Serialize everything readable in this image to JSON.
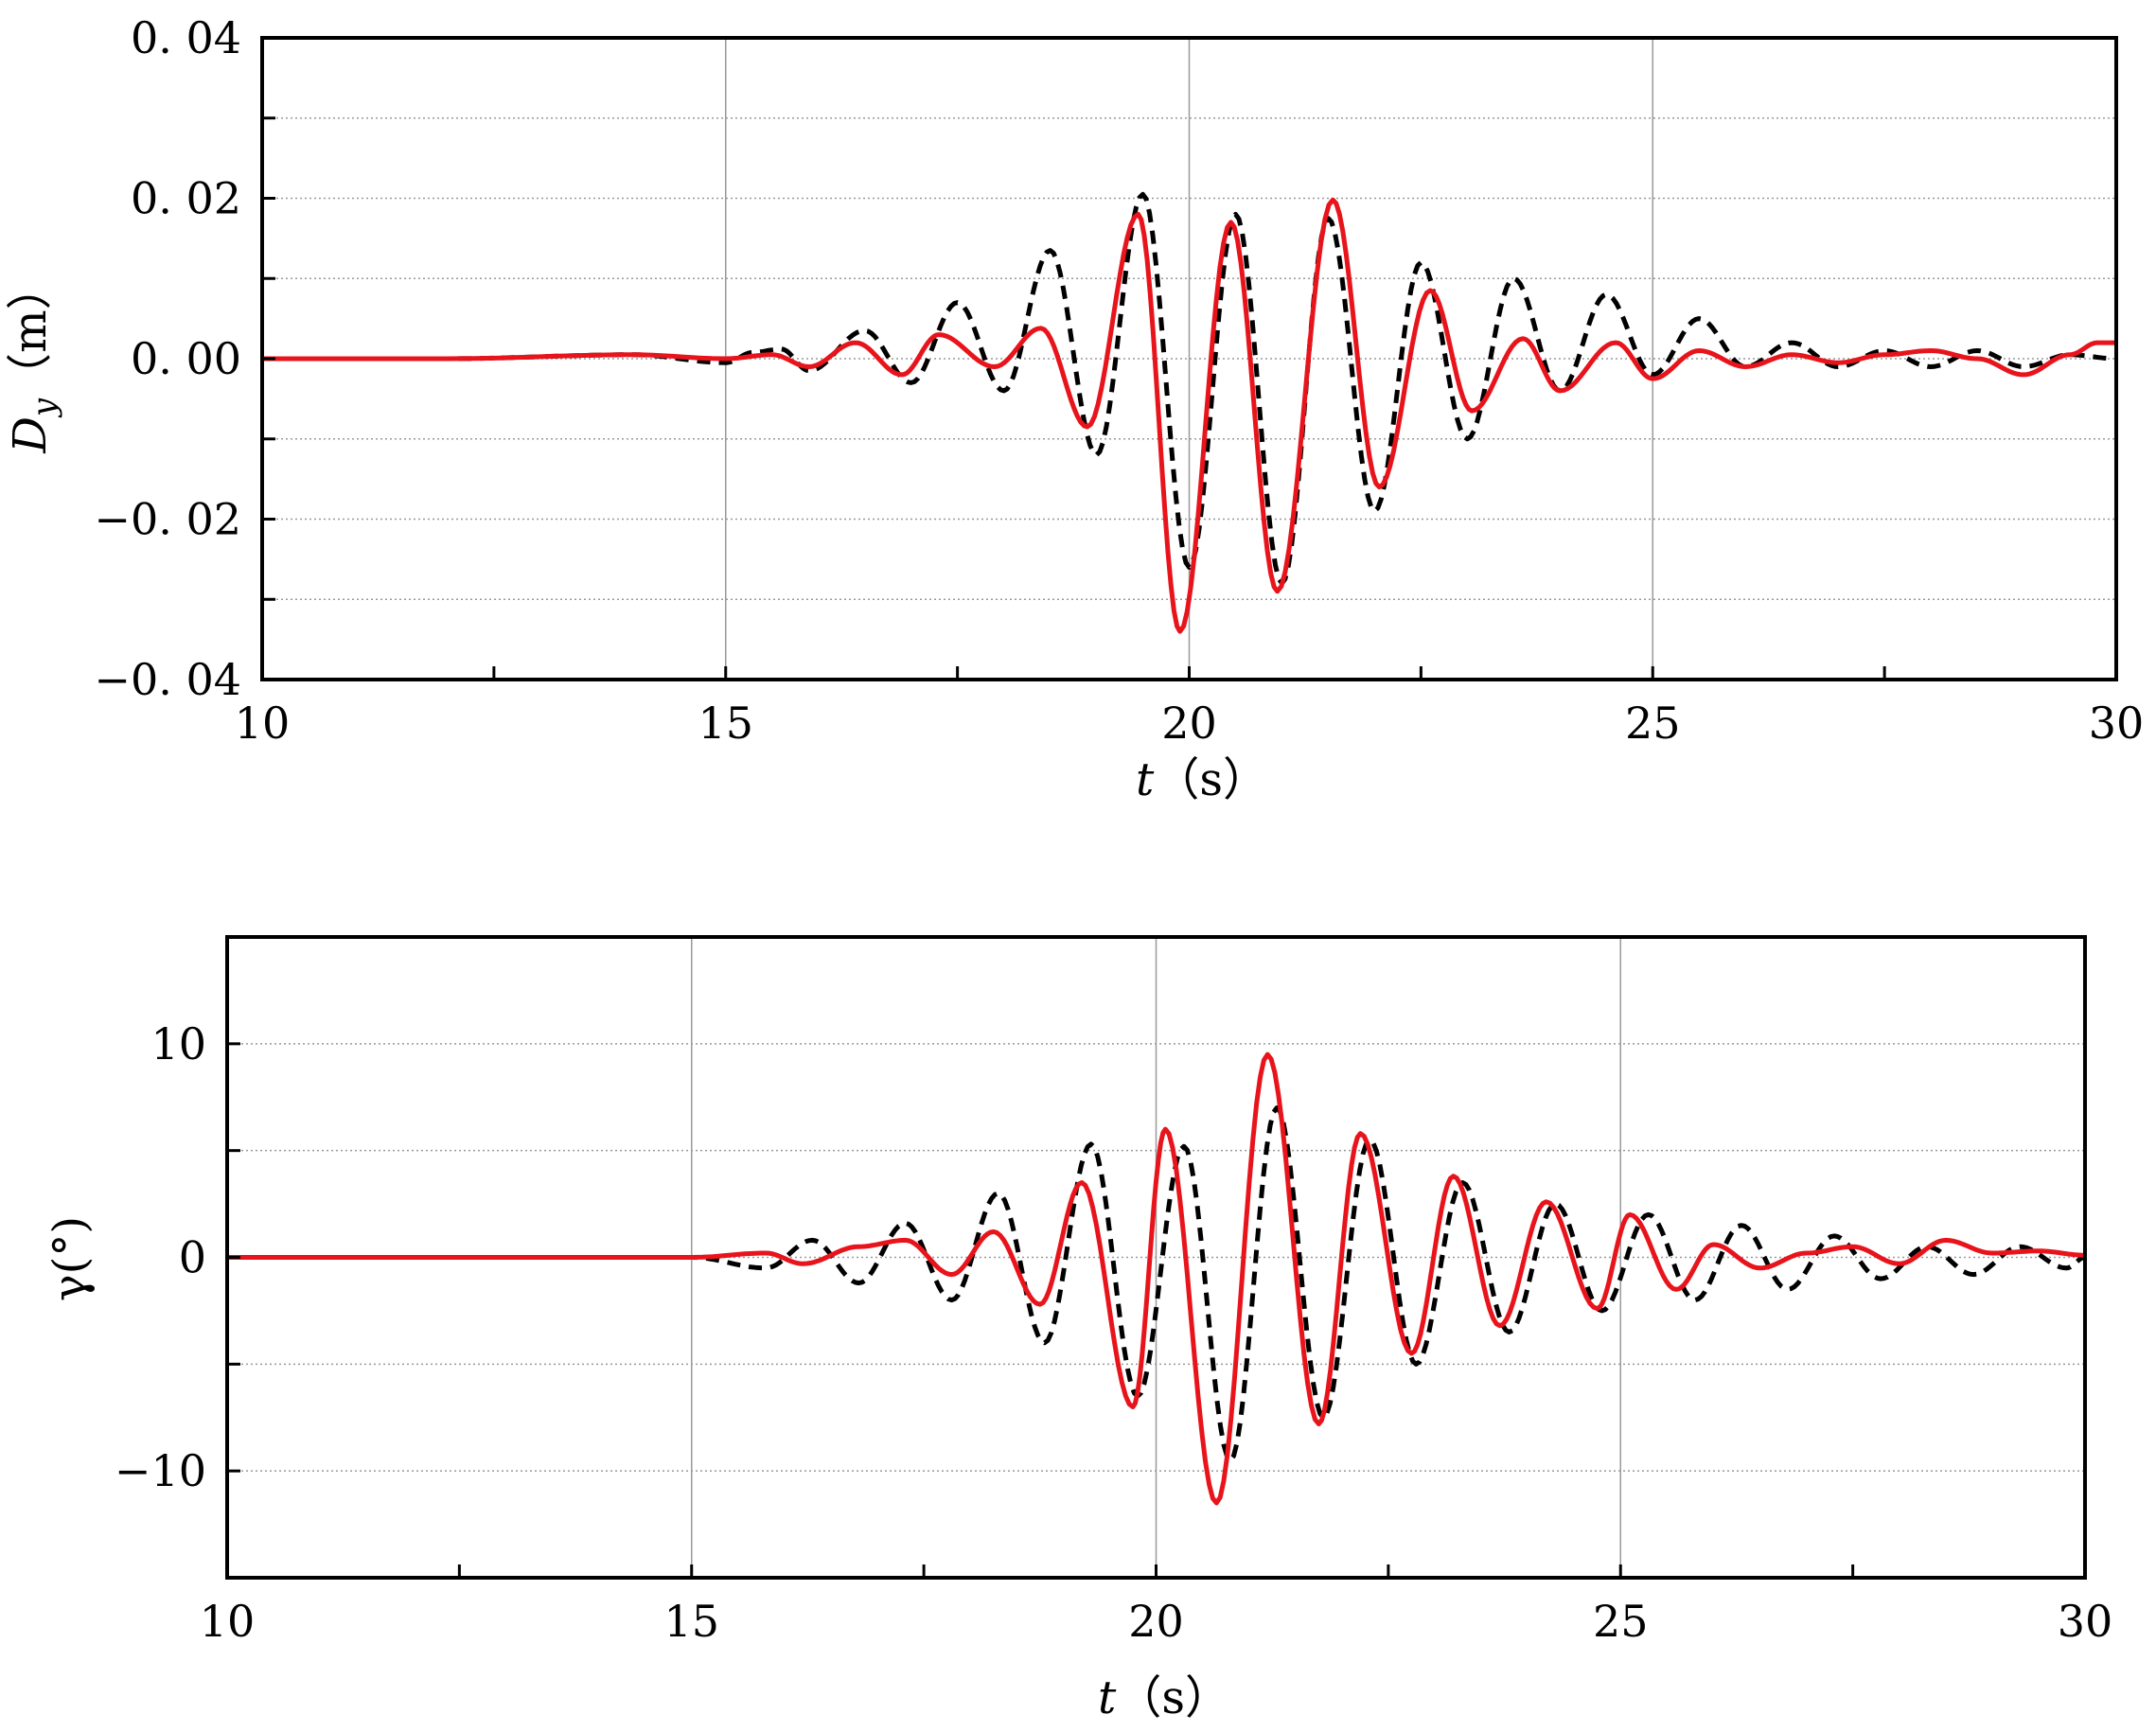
{
  "chart_data": [
    {
      "type": "line",
      "title": "",
      "xlabel": {
        "var": "t",
        "unit": "（s）"
      },
      "ylabel": {
        "var": "D",
        "sub": "y",
        "unit": "（m）"
      },
      "xlim": [
        10,
        30
      ],
      "ylim": [
        -0.04,
        0.04
      ],
      "grid": true,
      "legend": "none",
      "x_ticks": [
        "10",
        "15",
        "20",
        "25",
        "30"
      ],
      "y_ticks": [
        "−0. 04",
        "−0. 02",
        "0. 00",
        "0. 02",
        "0. 04"
      ],
      "series": [
        {
          "style": "dashed",
          "color": "#000000",
          "x": [
            10,
            12,
            14,
            15,
            15.3,
            15.6,
            15.9,
            16.5,
            17.0,
            17.5,
            18.0,
            18.5,
            19.0,
            19.5,
            20.0,
            20.5,
            21.0,
            21.5,
            22.0,
            22.5,
            23.0,
            23.5,
            24.0,
            24.5,
            25.0,
            25.5,
            26.0,
            26.5,
            27.0,
            27.5,
            28.0,
            28.5,
            29.0,
            29.5,
            30.0
          ],
          "y": [
            0.0,
            0.0,
            0.0005,
            -0.0005,
            0.0008,
            0.0012,
            -0.0015,
            0.0035,
            -0.003,
            0.007,
            -0.004,
            0.0135,
            -0.012,
            0.0205,
            -0.026,
            0.018,
            -0.028,
            0.0175,
            -0.019,
            0.012,
            -0.01,
            0.01,
            -0.004,
            0.008,
            -0.002,
            0.005,
            -0.001,
            0.002,
            -0.001,
            0.001,
            -0.001,
            0.001,
            -0.001,
            0.0005,
            0.0
          ]
        },
        {
          "style": "solid",
          "color": "#e8141c",
          "x": [
            10,
            12,
            14,
            15,
            15.5,
            15.9,
            16.4,
            16.9,
            17.3,
            17.9,
            18.4,
            18.9,
            19.45,
            19.9,
            20.45,
            20.95,
            21.55,
            22.05,
            22.6,
            23.05,
            23.6,
            24.0,
            24.6,
            25.0,
            25.5,
            26.0,
            26.5,
            27.0,
            27.5,
            28.0,
            28.5,
            29.0,
            29.5,
            29.8,
            30.0
          ],
          "y": [
            0.0,
            0.0,
            0.0005,
            0.0,
            0.0005,
            -0.001,
            0.002,
            -0.002,
            0.003,
            -0.001,
            0.0038,
            -0.0085,
            0.018,
            -0.034,
            0.017,
            -0.029,
            0.0198,
            -0.016,
            0.0085,
            -0.0065,
            0.0025,
            -0.004,
            0.002,
            -0.0025,
            0.001,
            -0.001,
            0.0005,
            -0.0005,
            0.0005,
            0.001,
            0.0,
            -0.002,
            0.0005,
            0.002,
            0.002
          ]
        }
      ]
    },
    {
      "type": "line",
      "title": "",
      "xlabel": {
        "var": "t",
        "unit": "（s）"
      },
      "ylabel": {
        "var": "γ",
        "unit": "(°)"
      },
      "xlim": [
        10,
        30
      ],
      "ylim": [
        -15,
        15
      ],
      "grid": true,
      "legend": "none",
      "x_ticks": [
        "10",
        "15",
        "20",
        "25",
        "30"
      ],
      "y_ticks": [
        "−10",
        "0",
        "10"
      ],
      "series": [
        {
          "style": "dashed",
          "color": "#000000",
          "x": [
            10,
            12,
            14,
            15,
            15.8,
            16.3,
            16.8,
            17.3,
            17.8,
            18.3,
            18.8,
            19.3,
            19.8,
            20.3,
            20.8,
            21.3,
            21.8,
            22.3,
            22.8,
            23.3,
            23.8,
            24.3,
            24.8,
            25.3,
            25.8,
            26.3,
            26.8,
            27.3,
            27.8,
            28.3,
            28.8,
            29.3,
            29.8,
            30.0
          ],
          "y": [
            0,
            0,
            0,
            0,
            -0.5,
            0.8,
            -1.2,
            1.6,
            -2.0,
            3.0,
            -4.0,
            5.3,
            -6.5,
            5.2,
            -9.5,
            7.0,
            -7.5,
            5.5,
            -5.0,
            3.5,
            -3.5,
            2.5,
            -2.5,
            2.0,
            -2.0,
            1.5,
            -1.5,
            1.0,
            -1.0,
            0.5,
            -0.8,
            0.5,
            -0.5,
            0.0
          ]
        },
        {
          "style": "solid",
          "color": "#e8141c",
          "x": [
            10,
            12,
            14,
            15,
            15.8,
            16.2,
            16.8,
            17.3,
            17.8,
            18.25,
            18.75,
            19.2,
            19.75,
            20.1,
            20.65,
            21.2,
            21.75,
            22.2,
            22.75,
            23.2,
            23.7,
            24.2,
            24.75,
            25.1,
            25.6,
            26.0,
            26.5,
            27.0,
            27.5,
            28.0,
            28.5,
            29.0,
            29.5,
            30.0
          ],
          "y": [
            0,
            0,
            0,
            0,
            0.2,
            -0.3,
            0.5,
            0.8,
            -0.8,
            1.2,
            -2.2,
            3.5,
            -7.0,
            6.0,
            -11.5,
            9.5,
            -7.8,
            5.8,
            -4.5,
            3.8,
            -3.2,
            2.6,
            -2.4,
            2.0,
            -1.5,
            0.6,
            -0.5,
            0.2,
            0.5,
            -0.3,
            0.8,
            0.2,
            0.3,
            0.1
          ]
        }
      ]
    }
  ]
}
